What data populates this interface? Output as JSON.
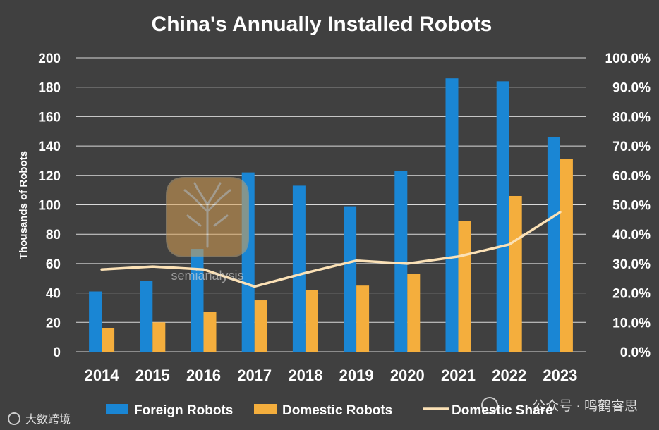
{
  "chart_data": {
    "type": "bar",
    "title": "China's Annually Installed Robots",
    "ylabel": "Thousands of Robots",
    "xlabel": "",
    "categories": [
      "2014",
      "2015",
      "2016",
      "2017",
      "2018",
      "2019",
      "2020",
      "2021",
      "2022",
      "2023"
    ],
    "ylim": [
      0,
      200
    ],
    "y_ticks": [
      "0",
      "20",
      "40",
      "60",
      "80",
      "100",
      "120",
      "140",
      "160",
      "180",
      "200"
    ],
    "y2lim": [
      0,
      100
    ],
    "y2_ticks": [
      "0.0%",
      "10.0%",
      "20.0%",
      "30.0%",
      "40.0%",
      "50.0%",
      "60.0%",
      "70.0%",
      "80.0%",
      "90.0%",
      "100.0%"
    ],
    "series": [
      {
        "name": "Foreign Robots",
        "kind": "bar",
        "axis": "left",
        "color": "#1a86d4",
        "values": [
          41,
          48,
          70,
          122,
          113,
          99,
          123,
          186,
          184,
          146
        ]
      },
      {
        "name": "Domestic Robots",
        "kind": "bar",
        "axis": "left",
        "color": "#f4ae3d",
        "values": [
          16,
          20,
          27,
          35,
          42,
          45,
          53,
          89,
          106,
          131
        ]
      },
      {
        "name": "Domestic Share",
        "kind": "line",
        "axis": "right",
        "color": "#fbe1b6",
        "values": [
          28.0,
          29.0,
          28.0,
          22.2,
          26.8,
          31.0,
          30.0,
          32.4,
          36.5,
          47.5
        ]
      }
    ],
    "grid": true,
    "legend_position": "bottom"
  },
  "watermarks": {
    "center_text": "semianalysis",
    "bottom_left": "大数跨境",
    "bottom_right": "公众号 · 鸣鹤睿思"
  },
  "colors": {
    "background": "#404040",
    "grid": "#d9d9d9",
    "foreign": "#1a86d4",
    "domestic": "#f4ae3d",
    "share": "#fbe1b6"
  }
}
